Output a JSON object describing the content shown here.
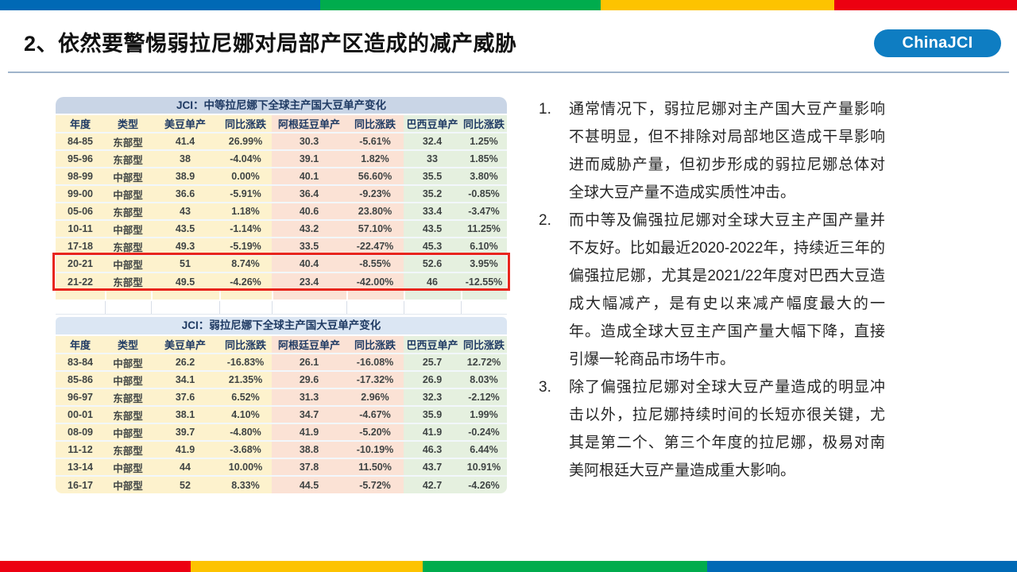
{
  "slide": {
    "title": "2、依然要警惕弱拉尼娜对局部产区造成的减产威胁",
    "badge": "ChinaJCI"
  },
  "colors": {
    "badge-blue": "#0E7DC2",
    "title1-bg": "#C9D5E6",
    "title2-bg": "#DBE6F3",
    "col-yellow": "#FDF2CD",
    "col-salmon": "#FBE2D5",
    "col-green": "#E5F0DF",
    "header-text": "#1F3A63",
    "cell-text": "#3F4444",
    "red-accent": "#E8251D",
    "red-year": "#D60000",
    "divider": "#9FB4CB"
  },
  "bars": {
    "top": [
      {
        "name": "blue",
        "color": "#0069B5",
        "w": "31.5%"
      },
      {
        "name": "green",
        "color": "#00AC4D",
        "w": "27.6%"
      },
      {
        "name": "yellow",
        "color": "#FDC300",
        "w": "22.9%"
      },
      {
        "name": "red",
        "color": "#EC0011",
        "w": "18.0%"
      }
    ],
    "bottom": [
      {
        "name": "red",
        "color": "#EC0011",
        "w": "18.75%"
      },
      {
        "name": "yellow",
        "color": "#FDC300",
        "w": "22.8%"
      },
      {
        "name": "green",
        "color": "#00AC4D",
        "w": "27.95%"
      },
      {
        "name": "blue",
        "color": "#0069B5",
        "w": "30.5%"
      }
    ]
  },
  "table1": {
    "title": "JCI：中等拉尼娜下全球主产国大豆单产变化",
    "columns": [
      "年度",
      "类型",
      "美豆单产",
      "同比涨跌",
      "阿根廷豆单产",
      "同比涨跌",
      "巴西豆单产",
      "同比涨跌"
    ],
    "rows": [
      [
        "84-85",
        "东部型",
        "41.4",
        "26.99%",
        "30.3",
        "-5.61%",
        "32.4",
        "1.25%"
      ],
      [
        "95-96",
        "东部型",
        "38",
        "-4.04%",
        "39.1",
        "1.82%",
        "33",
        "1.85%"
      ],
      [
        "98-99",
        "中部型",
        "38.9",
        "0.00%",
        "40.1",
        "56.60%",
        "35.5",
        "3.80%"
      ],
      [
        "99-00",
        "中部型",
        "36.6",
        "-5.91%",
        "36.4",
        "-9.23%",
        "35.2",
        "-0.85%"
      ],
      [
        "05-06",
        "东部型",
        "43",
        "1.18%",
        "40.6",
        "23.80%",
        "33.4",
        "-3.47%"
      ],
      [
        "10-11",
        "中部型",
        "43.5",
        "-1.14%",
        "43.2",
        "57.10%",
        "43.5",
        "11.25%"
      ],
      [
        "17-18",
        "东部型",
        "49.3",
        "-5.19%",
        "33.5",
        "-22.47%",
        "45.3",
        "6.10%"
      ],
      [
        "20-21",
        "中部型",
        "51",
        "8.74%",
        "40.4",
        "-8.55%",
        "52.6",
        "3.95%"
      ],
      [
        "21-22",
        "东部型",
        "49.5",
        "-4.26%",
        "23.4",
        "-42.00%",
        "46",
        "-12.55%"
      ]
    ],
    "highlight_rows": [
      7,
      8
    ],
    "red_year_rows": [
      8
    ]
  },
  "table2": {
    "title": "JCI：弱拉尼娜下全球主产国大豆单产变化",
    "columns": [
      "年度",
      "类型",
      "美豆单产",
      "同比涨跌",
      "阿根廷豆单产",
      "同比涨跌",
      "巴西豆单产",
      "同比涨跌"
    ],
    "rows": [
      [
        "83-84",
        "中部型",
        "26.2",
        "-16.83%",
        "26.1",
        "-16.08%",
        "25.7",
        "12.72%"
      ],
      [
        "85-86",
        "中部型",
        "34.1",
        "21.35%",
        "29.6",
        "-17.32%",
        "26.9",
        "8.03%"
      ],
      [
        "96-97",
        "东部型",
        "37.6",
        "6.52%",
        "31.3",
        "2.96%",
        "32.3",
        "-2.12%"
      ],
      [
        "00-01",
        "东部型",
        "38.1",
        "4.10%",
        "34.7",
        "-4.67%",
        "35.9",
        "1.99%"
      ],
      [
        "08-09",
        "中部型",
        "39.7",
        "-4.80%",
        "41.9",
        "-5.20%",
        "41.9",
        "-0.24%"
      ],
      [
        "11-12",
        "东部型",
        "41.9",
        "-3.68%",
        "38.8",
        "-10.19%",
        "46.3",
        "6.44%"
      ],
      [
        "13-14",
        "中部型",
        "44",
        "10.00%",
        "37.8",
        "11.50%",
        "43.7",
        "10.91%"
      ],
      [
        "16-17",
        "中部型",
        "52",
        "8.33%",
        "44.5",
        "-5.72%",
        "42.7",
        "-4.26%"
      ]
    ],
    "red_year_rows": []
  },
  "notes": [
    {
      "num": "1.",
      "text": "通常情况下，弱拉尼娜对主产国大豆产量影响不甚明显，但不排除对局部地区造成干旱影响进而威胁产量，但初步形成的弱拉尼娜总体对全球大豆产量不造成实质性冲击。"
    },
    {
      "num": "2.",
      "text": "而中等及偏强拉尼娜对全球大豆主产国产量并不友好。比如最近2020-2022年，持续近三年的偏强拉尼娜，尤其是2021/22年度对巴西大豆造成大幅减产，是有史以来减产幅度最大的一年。造成全球大豆主产国产量大幅下降，直接引爆一轮商品市场牛市。"
    },
    {
      "num": "3.",
      "text": "除了偏强拉尼娜对全球大豆产量造成的明显冲击以外，拉尼娜持续时间的长短亦很关键，尤其是第二个、第三个年度的拉尼娜，极易对南美阿根廷大豆产量造成重大影响。"
    }
  ]
}
